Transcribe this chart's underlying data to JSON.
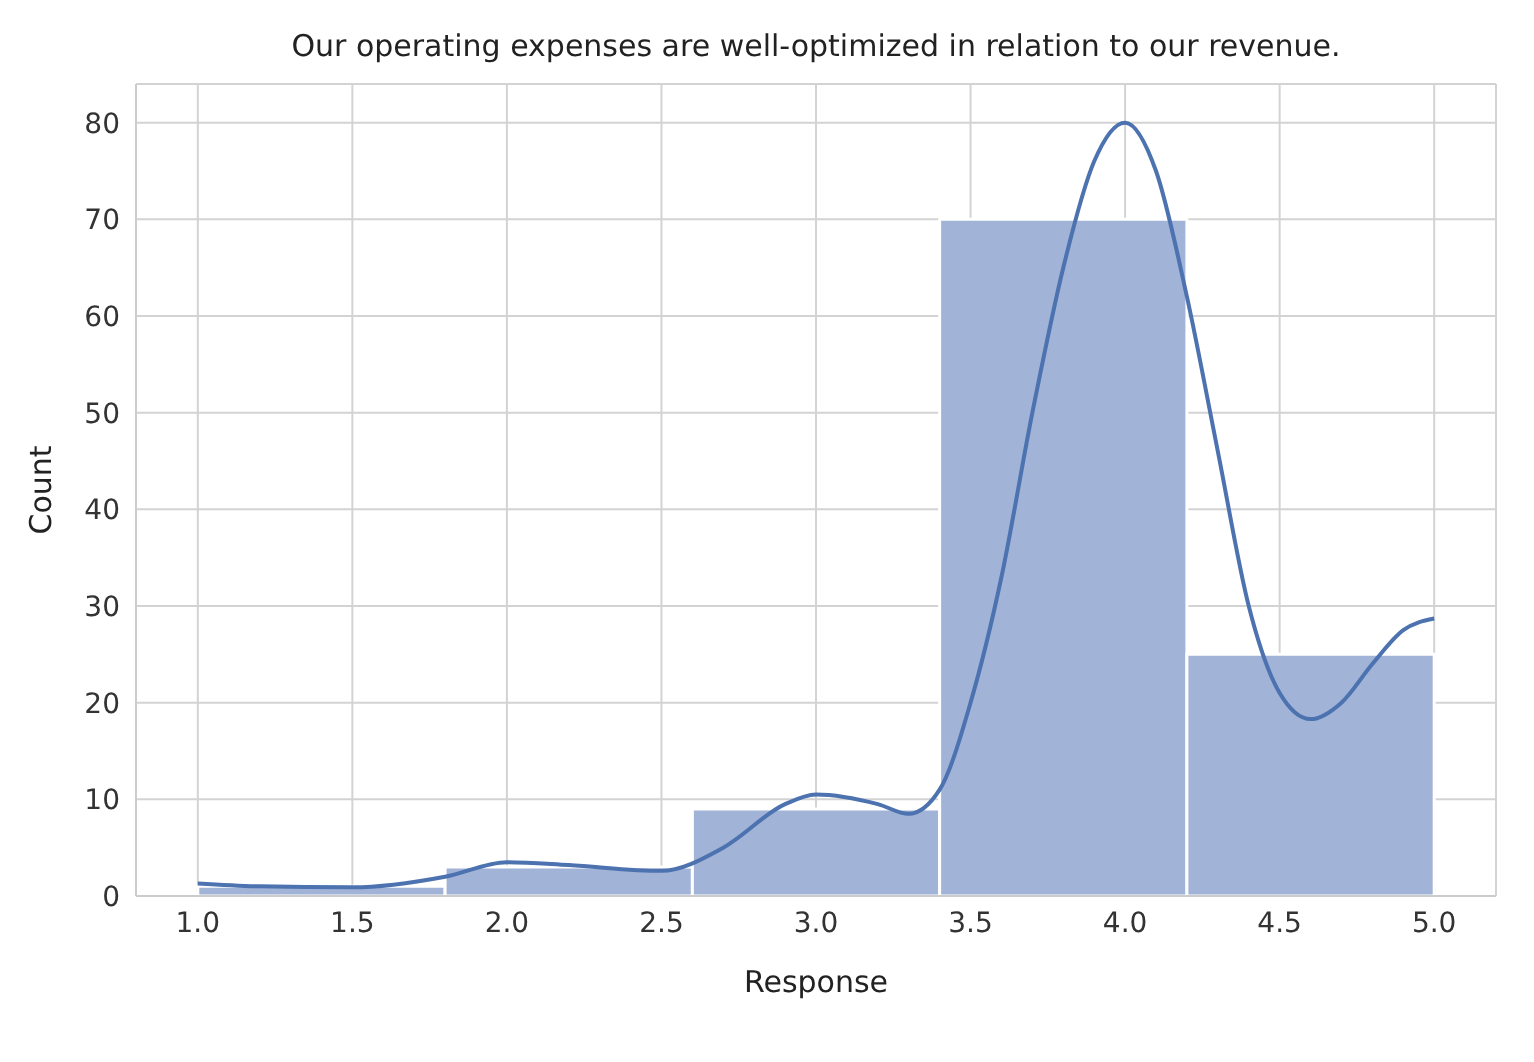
{
  "chart_data": {
    "type": "histogram",
    "title": "Our operating expenses are well-optimized in relation to our revenue.",
    "xlabel": "Response",
    "ylabel": "Count",
    "bins": [
      1.0,
      1.8,
      2.6,
      3.4,
      4.2,
      5.0
    ],
    "values": [
      1,
      3,
      9,
      70,
      25
    ],
    "color": "#a1b3d7",
    "series": [
      {
        "type": "line",
        "color": "#4c72b0",
        "x": [
          1.0,
          1.2,
          1.5,
          1.8,
          2.0,
          2.2,
          2.5,
          2.7,
          2.9,
          3.0,
          3.2,
          3.3,
          3.4,
          3.5,
          3.6,
          3.7,
          3.8,
          3.9,
          4.0,
          4.1,
          4.2,
          4.3,
          4.4,
          4.5,
          4.6,
          4.7,
          4.8,
          4.9,
          5.0
        ],
        "values": [
          1.3,
          1.0,
          0.9,
          2,
          3.5,
          3.2,
          2.6,
          5,
          9.5,
          10.5,
          9.5,
          8.5,
          11,
          20,
          33,
          50,
          65,
          76,
          80,
          75,
          62,
          46,
          30,
          21,
          18.3,
          20,
          24,
          27.5,
          28.7
        ]
      }
    ],
    "xlim": [
      0.8,
      5.2
    ],
    "ylim": [
      0,
      84
    ],
    "xticks": [
      {
        "value": 1,
        "label": "1.0"
      },
      {
        "value": 1.5,
        "label": "1.5"
      },
      {
        "value": 2,
        "label": "2.0"
      },
      {
        "value": 2.5,
        "label": "2.5"
      },
      {
        "value": 3,
        "label": "3.0"
      },
      {
        "value": 3.5,
        "label": "3.5"
      },
      {
        "value": 4,
        "label": "4.0"
      },
      {
        "value": 4.5,
        "label": "4.5"
      },
      {
        "value": 5,
        "label": "5.0"
      }
    ],
    "yticks": [
      0,
      10,
      20,
      30,
      40,
      50,
      60,
      70,
      80
    ],
    "grid": true
  }
}
